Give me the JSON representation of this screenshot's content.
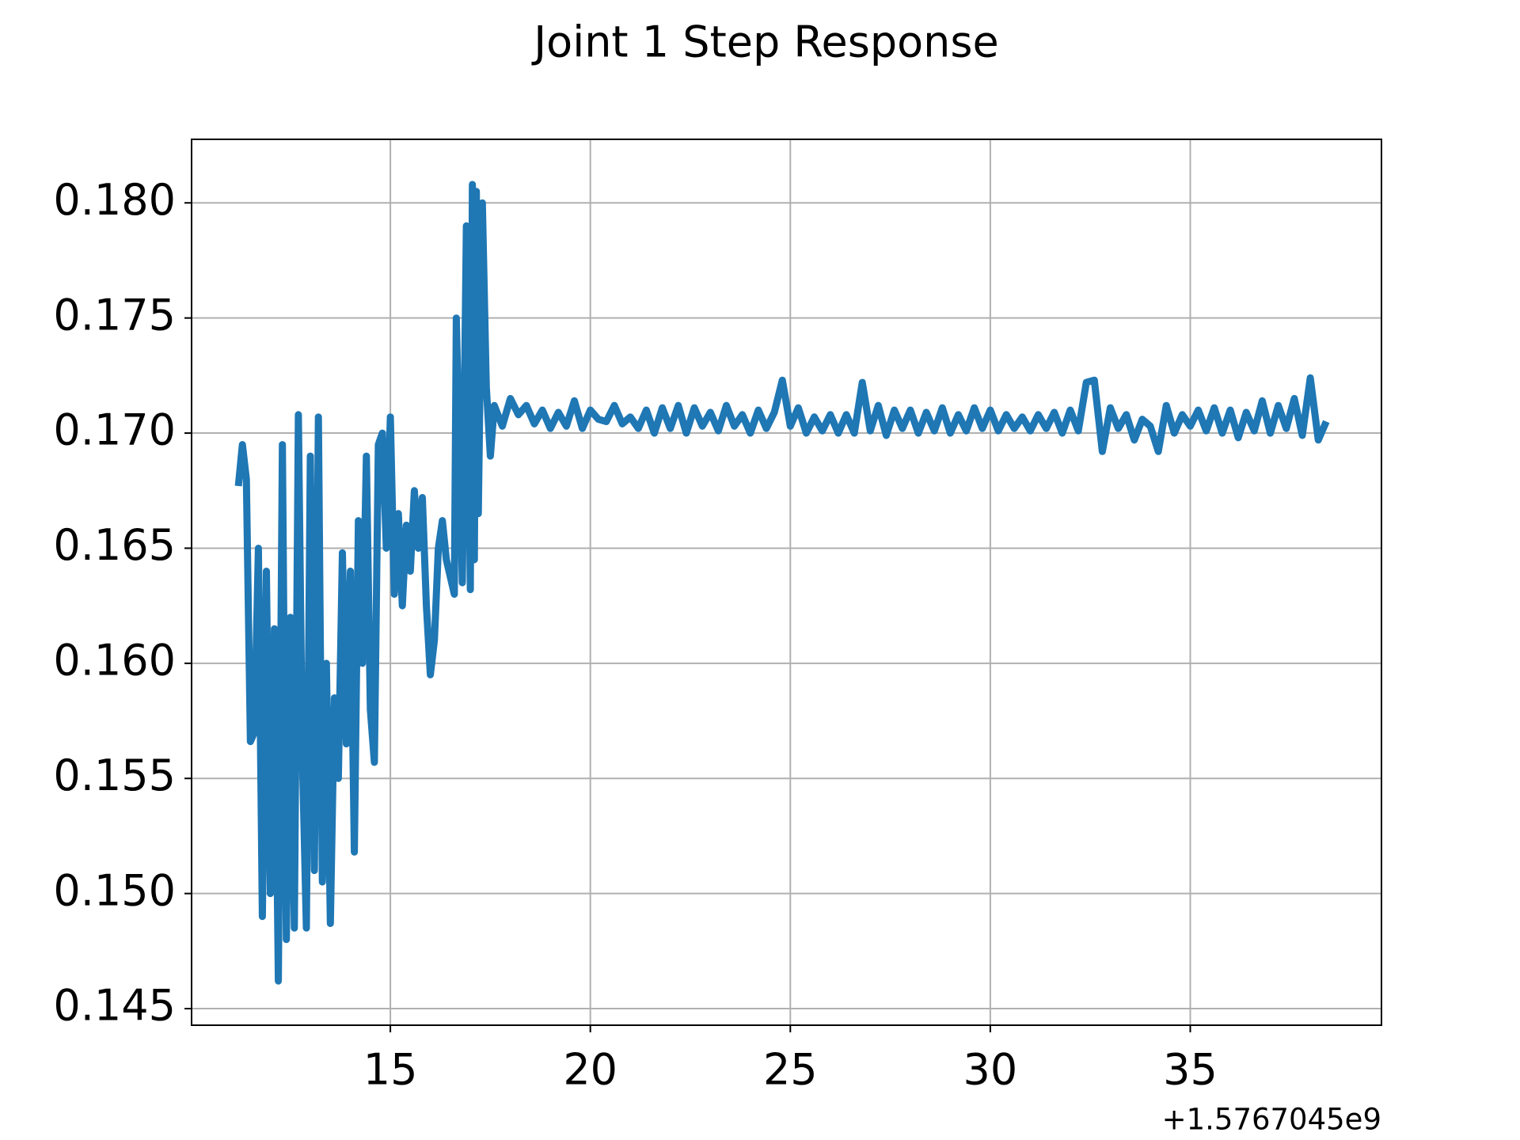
{
  "chart_data": {
    "type": "line",
    "title": "Joint 1 Step Response",
    "x_offset_label": "+1.5767045e9",
    "x": [
      11.2,
      11.3,
      11.4,
      11.5,
      11.6,
      11.7,
      11.8,
      11.9,
      12.0,
      12.1,
      12.2,
      12.3,
      12.4,
      12.5,
      12.6,
      12.7,
      12.8,
      12.9,
      13.0,
      13.1,
      13.2,
      13.3,
      13.4,
      13.5,
      13.6,
      13.7,
      13.8,
      13.9,
      14.0,
      14.1,
      14.2,
      14.3,
      14.4,
      14.5,
      14.6,
      14.7,
      14.8,
      14.9,
      15.0,
      15.1,
      15.2,
      15.3,
      15.4,
      15.5,
      15.6,
      15.7,
      15.8,
      15.9,
      16.0,
      16.1,
      16.2,
      16.3,
      16.4,
      16.6,
      16.65,
      16.8,
      16.9,
      17.0,
      17.05,
      17.1,
      17.15,
      17.2,
      17.3,
      17.4,
      17.5,
      17.6,
      17.8,
      18.0,
      18.2,
      18.4,
      18.6,
      18.8,
      19.0,
      19.2,
      19.4,
      19.6,
      19.8,
      20.0,
      20.2,
      20.4,
      20.6,
      20.8,
      21.0,
      21.2,
      21.4,
      21.6,
      21.8,
      22.0,
      22.2,
      22.4,
      22.6,
      22.8,
      23.0,
      23.2,
      23.4,
      23.6,
      23.8,
      24.0,
      24.2,
      24.4,
      24.6,
      24.8,
      25.0,
      25.2,
      25.4,
      25.6,
      25.8,
      26.0,
      26.2,
      26.4,
      26.6,
      26.8,
      27.0,
      27.2,
      27.4,
      27.6,
      27.8,
      28.0,
      28.2,
      28.4,
      28.6,
      28.8,
      29.0,
      29.2,
      29.4,
      29.6,
      29.8,
      30.0,
      30.2,
      30.4,
      30.6,
      30.8,
      31.0,
      31.2,
      31.4,
      31.6,
      31.8,
      32.0,
      32.2,
      32.4,
      32.6,
      32.8,
      33.0,
      33.2,
      33.4,
      33.6,
      33.8,
      34.0,
      34.2,
      34.4,
      34.6,
      34.8,
      35.0,
      35.2,
      35.4,
      35.6,
      35.8,
      36.0,
      36.2,
      36.4,
      36.6,
      36.8,
      37.0,
      37.2,
      37.4,
      37.6,
      37.8,
      38.0,
      38.2,
      38.4
    ],
    "values": [
      0.1677,
      0.1695,
      0.168,
      0.1566,
      0.157,
      0.165,
      0.149,
      0.164,
      0.15,
      0.1615,
      0.1462,
      0.1695,
      0.148,
      0.162,
      0.1485,
      0.1708,
      0.156,
      0.1485,
      0.169,
      0.151,
      0.1707,
      0.1505,
      0.16,
      0.1487,
      0.1585,
      0.155,
      0.1648,
      0.1565,
      0.164,
      0.1518,
      0.1662,
      0.16,
      0.169,
      0.158,
      0.1557,
      0.1695,
      0.17,
      0.165,
      0.1707,
      0.163,
      0.1665,
      0.1625,
      0.166,
      0.164,
      0.1675,
      0.165,
      0.1672,
      0.1625,
      0.1595,
      0.161,
      0.165,
      0.1662,
      0.1645,
      0.163,
      0.175,
      0.1635,
      0.179,
      0.1632,
      0.1808,
      0.1645,
      0.1805,
      0.1665,
      0.18,
      0.172,
      0.169,
      0.1712,
      0.1703,
      0.1715,
      0.1708,
      0.1712,
      0.1704,
      0.171,
      0.1702,
      0.1709,
      0.1703,
      0.1714,
      0.1702,
      0.171,
      0.1706,
      0.1705,
      0.1712,
      0.1704,
      0.1707,
      0.1702,
      0.171,
      0.17,
      0.1711,
      0.1702,
      0.1712,
      0.17,
      0.1711,
      0.1703,
      0.1709,
      0.1701,
      0.1712,
      0.1703,
      0.1708,
      0.17,
      0.171,
      0.1702,
      0.1709,
      0.1723,
      0.1703,
      0.1711,
      0.17,
      0.1707,
      0.1701,
      0.1708,
      0.17,
      0.1708,
      0.17,
      0.1722,
      0.1701,
      0.1712,
      0.1699,
      0.171,
      0.1702,
      0.171,
      0.17,
      0.1709,
      0.1701,
      0.1711,
      0.17,
      0.1708,
      0.1701,
      0.1711,
      0.1702,
      0.171,
      0.1701,
      0.1708,
      0.1702,
      0.1707,
      0.1701,
      0.1708,
      0.1702,
      0.1709,
      0.17,
      0.171,
      0.1701,
      0.1722,
      0.1723,
      0.1692,
      0.1711,
      0.1702,
      0.1708,
      0.1697,
      0.1706,
      0.1703,
      0.1692,
      0.1712,
      0.17,
      0.1708,
      0.1703,
      0.171,
      0.1701,
      0.1711,
      0.17,
      0.171,
      0.1698,
      0.1709,
      0.1701,
      0.1714,
      0.17,
      0.1712,
      0.1702,
      0.1715,
      0.1699,
      0.1724,
      0.1697,
      0.1705
    ],
    "color": "#1f77b4",
    "xlim": [
      10.03,
      39.78
    ],
    "xticks": [
      15,
      20,
      25,
      30,
      35
    ],
    "ylim": [
      0.14428,
      0.18276
    ],
    "yticks": [
      0.145,
      {
        "value": 0.15,
        "label": "0.150"
      },
      0.155,
      {
        "value": 0.16,
        "label": "0.160"
      },
      0.165,
      {
        "value": 0.17,
        "label": "0.170"
      },
      0.175,
      {
        "value": 0.18,
        "label": "0.180"
      }
    ],
    "grid": true
  }
}
